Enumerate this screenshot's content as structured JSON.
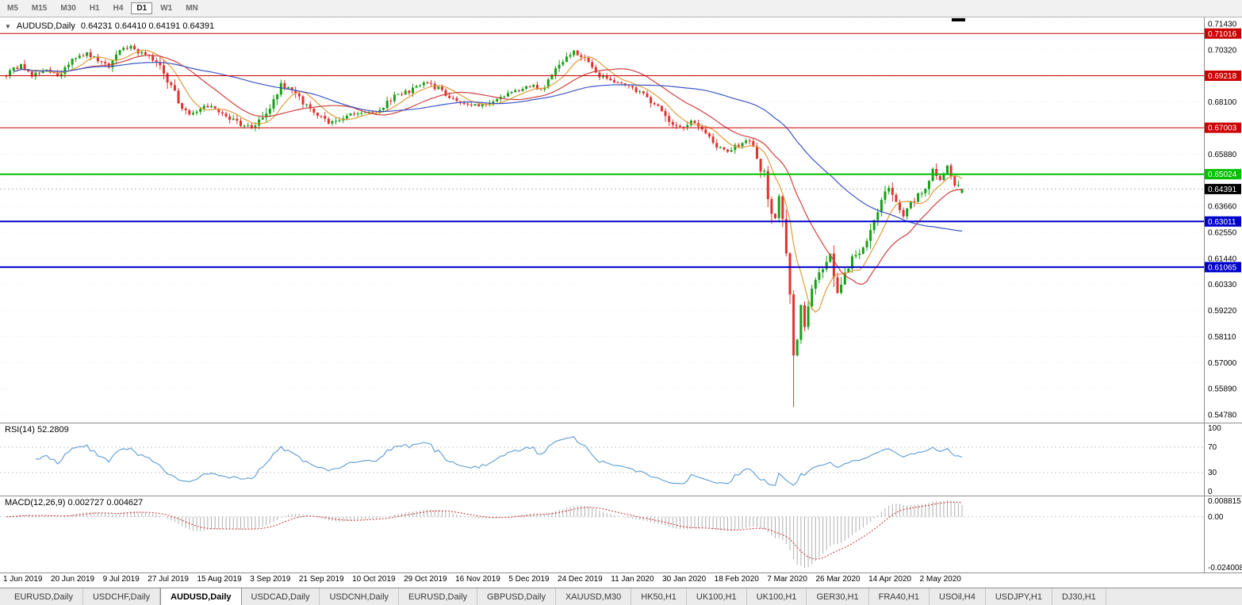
{
  "toolbar": {
    "timeframes": [
      "M5",
      "M15",
      "M30",
      "H1",
      "H4",
      "D1",
      "W1",
      "MN"
    ],
    "active": "D1"
  },
  "icons": {
    "chart_menu": "▼"
  },
  "chart": {
    "symbol_title": "AUDUSD,Daily",
    "ohlc_title": "0.64231 0.64410 0.64191 0.64391"
  },
  "chart_data": {
    "type": "candlestick",
    "symbol": "AUDUSD",
    "timeframe": "Daily",
    "last_candle": {
      "open": 0.64231,
      "high": 0.6441,
      "low": 0.64191,
      "close": 0.64391
    },
    "current_price": 0.64391,
    "price_badge": {
      "price": 0.64391,
      "label": "0.64391",
      "color": "#000000"
    },
    "price_axis": {
      "min": 0.5478,
      "max": 0.7143,
      "ticks": [
        "0.71430",
        "0.70320",
        "0.69210",
        "0.68100",
        "0.66990",
        "0.65880",
        "0.64770",
        "0.63660",
        "0.62550",
        "0.61440",
        "0.60330",
        "0.59220",
        "0.58110",
        "0.57000",
        "0.55890",
        "0.54780"
      ]
    },
    "hlines": [
      {
        "price": 0.71016,
        "label": "0.71016",
        "color": "#cc0000",
        "width": 1
      },
      {
        "price": 0.69218,
        "label": "0.69218",
        "color": "#cc0000",
        "width": 1
      },
      {
        "price": 0.67003,
        "label": "0.67003",
        "color": "#cc0000",
        "width": 1
      },
      {
        "price": 0.65024,
        "label": "0.65024",
        "color": "#00c000",
        "width": 2
      },
      {
        "price": 0.63011,
        "label": "0.63011",
        "color": "#0000cc",
        "width": 2
      },
      {
        "price": 0.61065,
        "label": "0.61065",
        "color": "#0000cc",
        "width": 2
      }
    ],
    "date_labels": [
      "1 Jun 2019",
      "20 Jun 2019",
      "9 Jul 2019",
      "27 Jul 2019",
      "15 Aug 2019",
      "3 Sep 2019",
      "21 Sep 2019",
      "10 Oct 2019",
      "29 Oct 2019",
      "16 Nov 2019",
      "5 Dec 2019",
      "24 Dec 2019",
      "11 Jan 2020",
      "30 Jan 2020",
      "18 Feb 2020",
      "7 Mar 2020",
      "26 Mar 2020",
      "14 Apr 2020",
      "2 May 2020"
    ],
    "num_candles": 262,
    "close_anchors": [
      [
        0,
        0.6925
      ],
      [
        4,
        0.697
      ],
      [
        7,
        0.6915
      ],
      [
        10,
        0.695
      ],
      [
        14,
        0.6925
      ],
      [
        18,
        0.6995
      ],
      [
        22,
        0.7015
      ],
      [
        25,
        0.699
      ],
      [
        28,
        0.6965
      ],
      [
        31,
        0.703
      ],
      [
        34,
        0.7042
      ],
      [
        37,
        0.7015
      ],
      [
        41,
        0.6985
      ],
      [
        44,
        0.6905
      ],
      [
        47,
        0.6805
      ],
      [
        50,
        0.676
      ],
      [
        55,
        0.679
      ],
      [
        58,
        0.677
      ],
      [
        61,
        0.6745
      ],
      [
        64,
        0.6715
      ],
      [
        68,
        0.67
      ],
      [
        72,
        0.6795
      ],
      [
        75,
        0.688
      ],
      [
        78,
        0.6855
      ],
      [
        82,
        0.6795
      ],
      [
        85,
        0.6755
      ],
      [
        88,
        0.6715
      ],
      [
        92,
        0.6745
      ],
      [
        96,
        0.6765
      ],
      [
        100,
        0.676
      ],
      [
        103,
        0.6795
      ],
      [
        106,
        0.684
      ],
      [
        110,
        0.6855
      ],
      [
        113,
        0.6885
      ],
      [
        116,
        0.689
      ],
      [
        119,
        0.685
      ],
      [
        123,
        0.6815
      ],
      [
        126,
        0.68
      ],
      [
        129,
        0.679
      ],
      [
        133,
        0.6815
      ],
      [
        137,
        0.6845
      ],
      [
        140,
        0.6865
      ],
      [
        143,
        0.688
      ],
      [
        146,
        0.6865
      ],
      [
        150,
        0.694
      ],
      [
        153,
        0.7005
      ],
      [
        155,
        0.7025
      ],
      [
        158,
        0.6985
      ],
      [
        161,
        0.693
      ],
      [
        164,
        0.6905
      ],
      [
        167,
        0.6895
      ],
      [
        170,
        0.6875
      ],
      [
        173,
        0.6855
      ],
      [
        178,
        0.679
      ],
      [
        181,
        0.672
      ],
      [
        184,
        0.67
      ],
      [
        187,
        0.673
      ],
      [
        191,
        0.6685
      ],
      [
        194,
        0.662
      ],
      [
        197,
        0.6595
      ],
      [
        200,
        0.663
      ],
      [
        203,
        0.6645
      ],
      [
        205,
        0.6585
      ],
      [
        207,
        0.649
      ],
      [
        209,
        0.636
      ],
      [
        210,
        0.6315
      ],
      [
        211,
        0.64
      ],
      [
        212,
        0.629
      ],
      [
        213,
        0.619
      ],
      [
        214,
        0.598
      ],
      [
        215,
        0.576
      ],
      [
        216,
        0.581
      ],
      [
        217,
        0.5935
      ],
      [
        218,
        0.585
      ],
      [
        219,
        0.596
      ],
      [
        221,
        0.604
      ],
      [
        223,
        0.61
      ],
      [
        225,
        0.615
      ],
      [
        227,
        0.601
      ],
      [
        229,
        0.609
      ],
      [
        231,
        0.6145
      ],
      [
        233,
        0.618
      ],
      [
        235,
        0.624
      ],
      [
        237,
        0.632
      ],
      [
        239,
        0.6385
      ],
      [
        241,
        0.6445
      ],
      [
        243,
        0.6365
      ],
      [
        245,
        0.632
      ],
      [
        247,
        0.637
      ],
      [
        249,
        0.6415
      ],
      [
        251,
        0.6455
      ],
      [
        253,
        0.652
      ],
      [
        255,
        0.647
      ],
      [
        257,
        0.654
      ],
      [
        258,
        0.6495
      ],
      [
        259,
        0.6465
      ],
      [
        260,
        0.645
      ],
      [
        261,
        0.64391
      ]
    ],
    "long_wicks": [
      {
        "i": 210,
        "low": 0.6313
      },
      {
        "i": 215,
        "low": 0.551
      }
    ],
    "candle_colors": {
      "up": "#18a018",
      "down": "#e03232"
    },
    "moving_averages": [
      {
        "name": "fast",
        "period": 8,
        "color": "#e09c3c"
      },
      {
        "name": "mid",
        "period": 21,
        "color": "#cf4242"
      },
      {
        "name": "slow",
        "period": 55,
        "color": "#3b57c4"
      }
    ],
    "indicators": {
      "rsi": {
        "display": "RSI(14) 52.2809",
        "period": 14,
        "value": 52.2809,
        "axis_labels": [
          "100",
          "70",
          "30",
          "0"
        ],
        "levels": [
          70,
          30
        ],
        "color": "#5b9bd5"
      },
      "macd": {
        "display": "MACD(12,26,9) 0.002727 0.004627",
        "fast": 12,
        "slow": 26,
        "signal": 9,
        "value": 0.002727,
        "signal_value": 0.004627,
        "axis_max": "0.008815",
        "axis_zero": "0.00",
        "axis_min": "-0.0240082",
        "histogram_color": "#b0b0b0",
        "signal_color": "#cc3333"
      }
    }
  },
  "bottom_tabs": [
    "EURUSD,Daily",
    "USDCHF,Daily",
    "AUDUSD,Daily",
    "USDCAD,Daily",
    "USDCNH,Daily",
    "EURUSD,Daily",
    "GBPUSD,Daily",
    "XAUUSD,M30",
    "HK50,H1",
    "UK100,H1",
    "UK100,H1",
    "GER30,H1",
    "FRA40,H1",
    "USOil,H4",
    "USDJPY,H1",
    "DJ30,H1"
  ],
  "active_tab": "AUDUSD,Daily"
}
